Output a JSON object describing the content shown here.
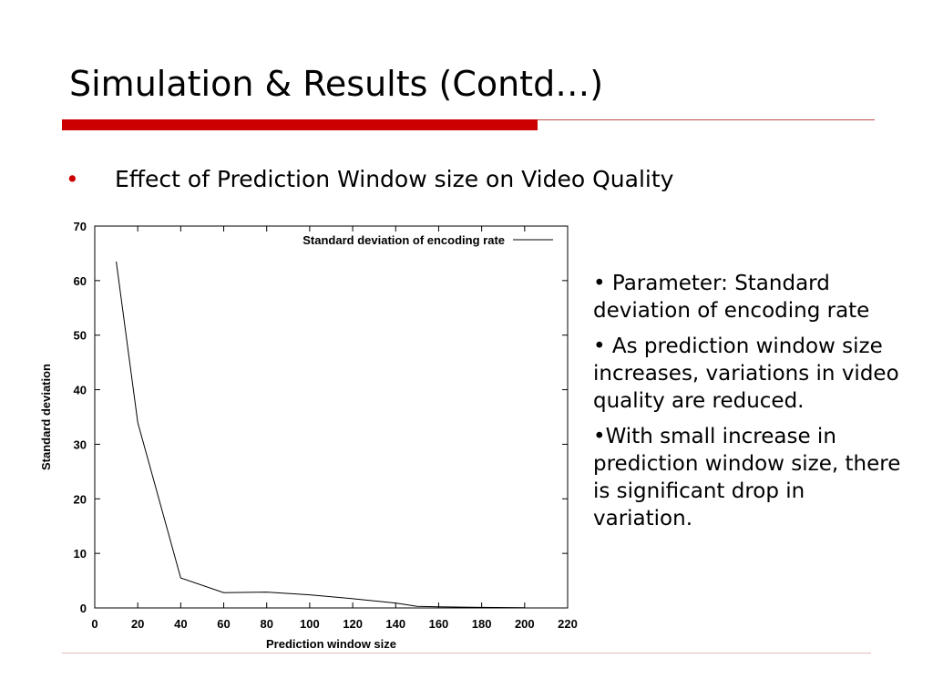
{
  "slide": {
    "title": "Simulation & Results (Contd…)",
    "bullet_symbol": "•",
    "bullet": "Effect of Prediction Window size on Video Quality",
    "notes": [
      "• Parameter: Standard deviation of encoding rate",
      "• As prediction window size increases, variations in video quality are reduced.",
      "•With small increase in prediction window size, there is significant drop in variation."
    ]
  },
  "colors": {
    "accent": "#cc0000",
    "rule_thin": "#c0504d",
    "footer_rule": "#e6b9b8",
    "series": "#000000"
  },
  "chart_data": {
    "type": "line",
    "title": "",
    "xlabel": "Prediction window size",
    "ylabel": "Standard deviation",
    "xlim": [
      0,
      220
    ],
    "ylim": [
      0,
      70
    ],
    "x_ticks": [
      0,
      20,
      40,
      60,
      80,
      100,
      120,
      140,
      160,
      180,
      200,
      220
    ],
    "y_ticks": [
      0,
      10,
      20,
      30,
      40,
      50,
      60,
      70
    ],
    "grid": false,
    "legend_position": "top-right",
    "series": [
      {
        "name": "Standard deviation of encoding rate",
        "x": [
          10,
          20,
          40,
          60,
          80,
          100,
          120,
          140,
          150,
          160,
          180,
          200
        ],
        "y": [
          63.5,
          34,
          5.5,
          2.8,
          2.9,
          2.4,
          1.7,
          0.9,
          0.3,
          0.2,
          0.1,
          0.05
        ]
      }
    ]
  }
}
